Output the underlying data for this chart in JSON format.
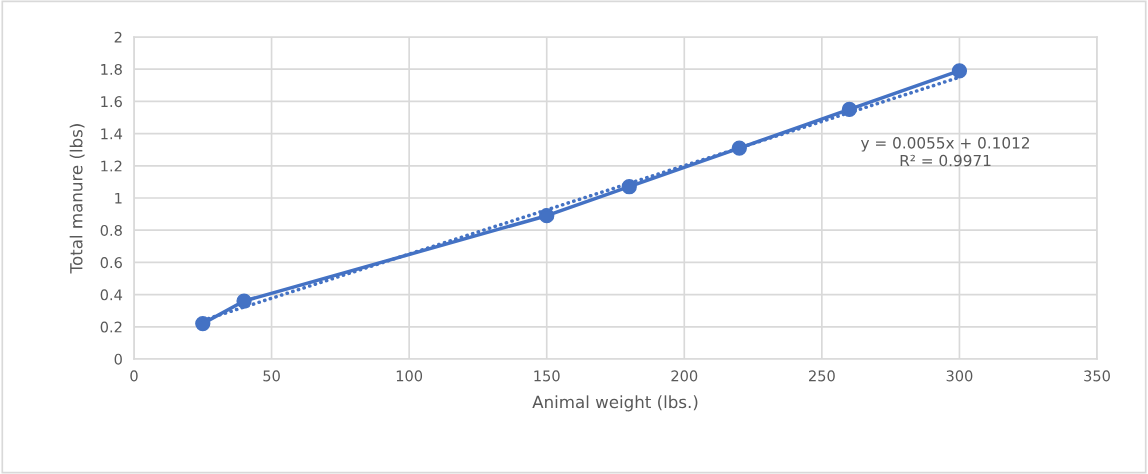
{
  "chart_data": {
    "type": "line",
    "xlabel": "Animal weight (lbs.)",
    "ylabel": "Total manure (lbs)",
    "x": [
      25,
      40,
      150,
      180,
      220,
      260,
      300
    ],
    "series": [
      {
        "color": "#4472c4",
        "values": [
          0.22,
          0.36,
          0.89,
          1.07,
          1.31,
          1.55,
          1.79
        ],
        "marker": "circle",
        "line_style": "solid"
      },
      {
        "type": "line",
        "color": "#4472c4",
        "x": [
          25,
          300
        ],
        "values": [
          0.24,
          1.75
        ],
        "marker": "none",
        "line_style": "dotted"
      }
    ],
    "xlim": [
      0,
      350
    ],
    "xticks": [
      0,
      50,
      100,
      150,
      200,
      250,
      300,
      350
    ],
    "ylim": [
      0,
      2
    ],
    "yticks": [
      0,
      {
        "value": 0.2,
        "label": "0.2"
      },
      {
        "value": 0.4,
        "label": "0.4"
      },
      {
        "value": 0.6,
        "label": "0.6"
      },
      {
        "value": 0.8,
        "label": "0.8"
      },
      1,
      {
        "value": 1.2,
        "label": "1.2"
      },
      {
        "value": 1.4,
        "label": "1.4"
      },
      {
        "value": 1.6,
        "label": "1.6"
      },
      {
        "value": 1.8,
        "label": "1.8"
      },
      2
    ],
    "annotations": [
      "y = 0.0055x + 0.1012\nR² = 0.9971"
    ],
    "grid": true
  }
}
